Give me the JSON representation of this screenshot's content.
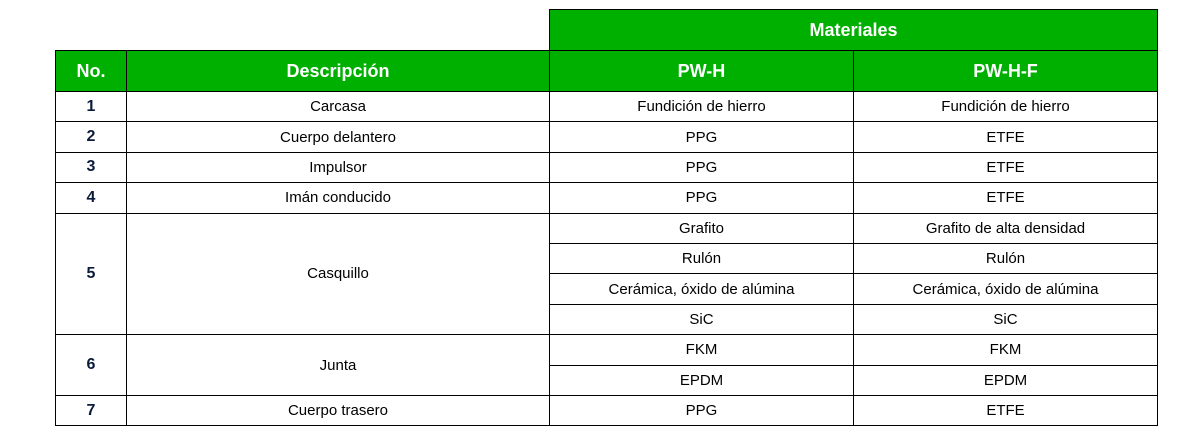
{
  "header": {
    "group": "Materiales",
    "columns": [
      "No.",
      "Descripción",
      "PW-H",
      "PW-H-F"
    ]
  },
  "colors": {
    "header_bg": "#00B000",
    "header_text": "#FFFFFF"
  },
  "items": [
    {
      "no": "1",
      "desc": "Carcasa",
      "rows": [
        [
          "Fundición de hierro",
          "Fundición de hierro"
        ]
      ]
    },
    {
      "no": "2",
      "desc": "Cuerpo delantero",
      "rows": [
        [
          "PPG",
          "ETFE"
        ]
      ]
    },
    {
      "no": "3",
      "desc": "Impulsor",
      "rows": [
        [
          "PPG",
          "ETFE"
        ]
      ]
    },
    {
      "no": "4",
      "desc": "Imán conducido",
      "rows": [
        [
          "PPG",
          "ETFE"
        ]
      ]
    },
    {
      "no": "5",
      "desc": "Casquillo",
      "rows": [
        [
          "Grafito",
          "Grafito de alta densidad"
        ],
        [
          "Rulón",
          "Rulón"
        ],
        [
          "Cerámica, óxido de alúmina",
          "Cerámica, óxido de alúmina"
        ],
        [
          "SiC",
          "SiC"
        ]
      ]
    },
    {
      "no": "6",
      "desc": "Junta",
      "rows": [
        [
          "FKM",
          "FKM"
        ],
        [
          "EPDM",
          "EPDM"
        ]
      ]
    },
    {
      "no": "7",
      "desc": "Cuerpo trasero",
      "rows": [
        [
          "PPG",
          "ETFE"
        ]
      ]
    }
  ]
}
